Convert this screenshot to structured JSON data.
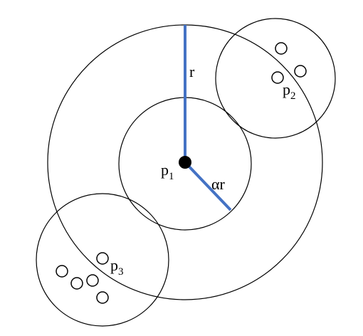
{
  "diagram": {
    "labels": {
      "r": "r",
      "alpha_r": "αr",
      "p1": {
        "base": "p",
        "sub": "1"
      },
      "p2": {
        "base": "p",
        "sub": "2"
      },
      "p3": {
        "base": "p",
        "sub": "3"
      }
    },
    "colors": {
      "stroke": "#000000",
      "radius_line": "#4472c4",
      "center_point": "#000000",
      "background": "#ffffff"
    }
  }
}
